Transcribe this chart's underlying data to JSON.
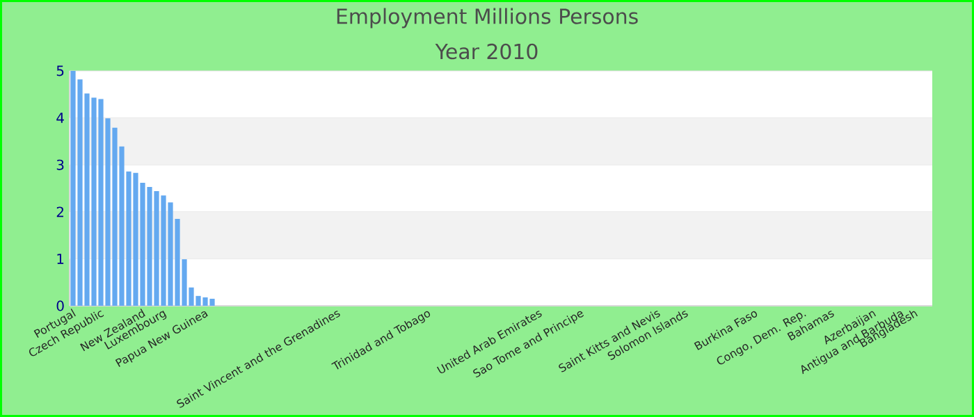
{
  "chart_data": {
    "type": "bar",
    "title": "Employment Millions Persons",
    "subtitle": "Year 2010",
    "categories": [
      "Portugal",
      null,
      null,
      null,
      "Czech Republic",
      null,
      null,
      null,
      null,
      null,
      "New Zealand",
      null,
      null,
      "Luxembourg",
      null,
      null,
      null,
      null,
      null,
      "Papua New Guinea",
      null,
      null,
      null,
      null,
      null,
      null,
      null,
      null,
      null,
      null,
      null,
      null,
      null,
      null,
      null,
      null,
      null,
      null,
      "Saint Vincent and the Grenadines",
      null,
      null,
      null,
      null,
      null,
      null,
      null,
      null,
      null,
      null,
      null,
      null,
      "Trinidad and Tobago",
      null,
      null,
      null,
      null,
      null,
      null,
      null,
      null,
      null,
      null,
      null,
      null,
      null,
      null,
      null,
      "United Arab Emirates",
      null,
      null,
      null,
      null,
      null,
      "Sao Tome and Principe",
      null,
      null,
      null,
      null,
      null,
      null,
      null,
      null,
      null,
      null,
      "Saint Kitts and Nevis",
      null,
      null,
      null,
      "Solomon Islands",
      null,
      null,
      null,
      null,
      null,
      null,
      null,
      null,
      null,
      "Burkina Faso",
      null,
      null,
      null,
      null,
      null,
      null,
      "Congo, Dem. Rep.",
      null,
      null,
      null,
      "Bahamas",
      null,
      null,
      null,
      null,
      null,
      "Azerbaijan",
      null,
      null,
      null,
      "Antigua and Barbuda",
      null,
      "Bangladesh",
      null,
      null
    ],
    "values": [
      5.0,
      4.82,
      4.52,
      4.43,
      4.4,
      3.99,
      3.79,
      3.39,
      2.86,
      2.83,
      2.62,
      2.53,
      2.44,
      2.35,
      2.2,
      1.85,
      0.99,
      0.39,
      0.21,
      0.18,
      0.15,
      null,
      null,
      null,
      null,
      null,
      null,
      null,
      null,
      null,
      null,
      null,
      null,
      null,
      null,
      null,
      null,
      null,
      null,
      null,
      null,
      null,
      null,
      null,
      null,
      null,
      null,
      null,
      null,
      null,
      null,
      null,
      null,
      null,
      null,
      null,
      null,
      null,
      null,
      null,
      null,
      null,
      null,
      null,
      null,
      null,
      null,
      null,
      null,
      null,
      null,
      null,
      null,
      null,
      null,
      null,
      null,
      null,
      null,
      null,
      null,
      null,
      null,
      null,
      null,
      null,
      null,
      null,
      null,
      null,
      null,
      null,
      null,
      null,
      null,
      null,
      null,
      null,
      null,
      null,
      null,
      null,
      null,
      null,
      null,
      null,
      null,
      null,
      null,
      null,
      null,
      null,
      null,
      null,
      null,
      null,
      null,
      null,
      null,
      null,
      null,
      null,
      null,
      null
    ],
    "color": "#64a9f0",
    "ylim": [
      0,
      5
    ],
    "yticks": [
      0,
      1,
      2,
      3,
      4,
      5
    ],
    "grid": "y"
  }
}
